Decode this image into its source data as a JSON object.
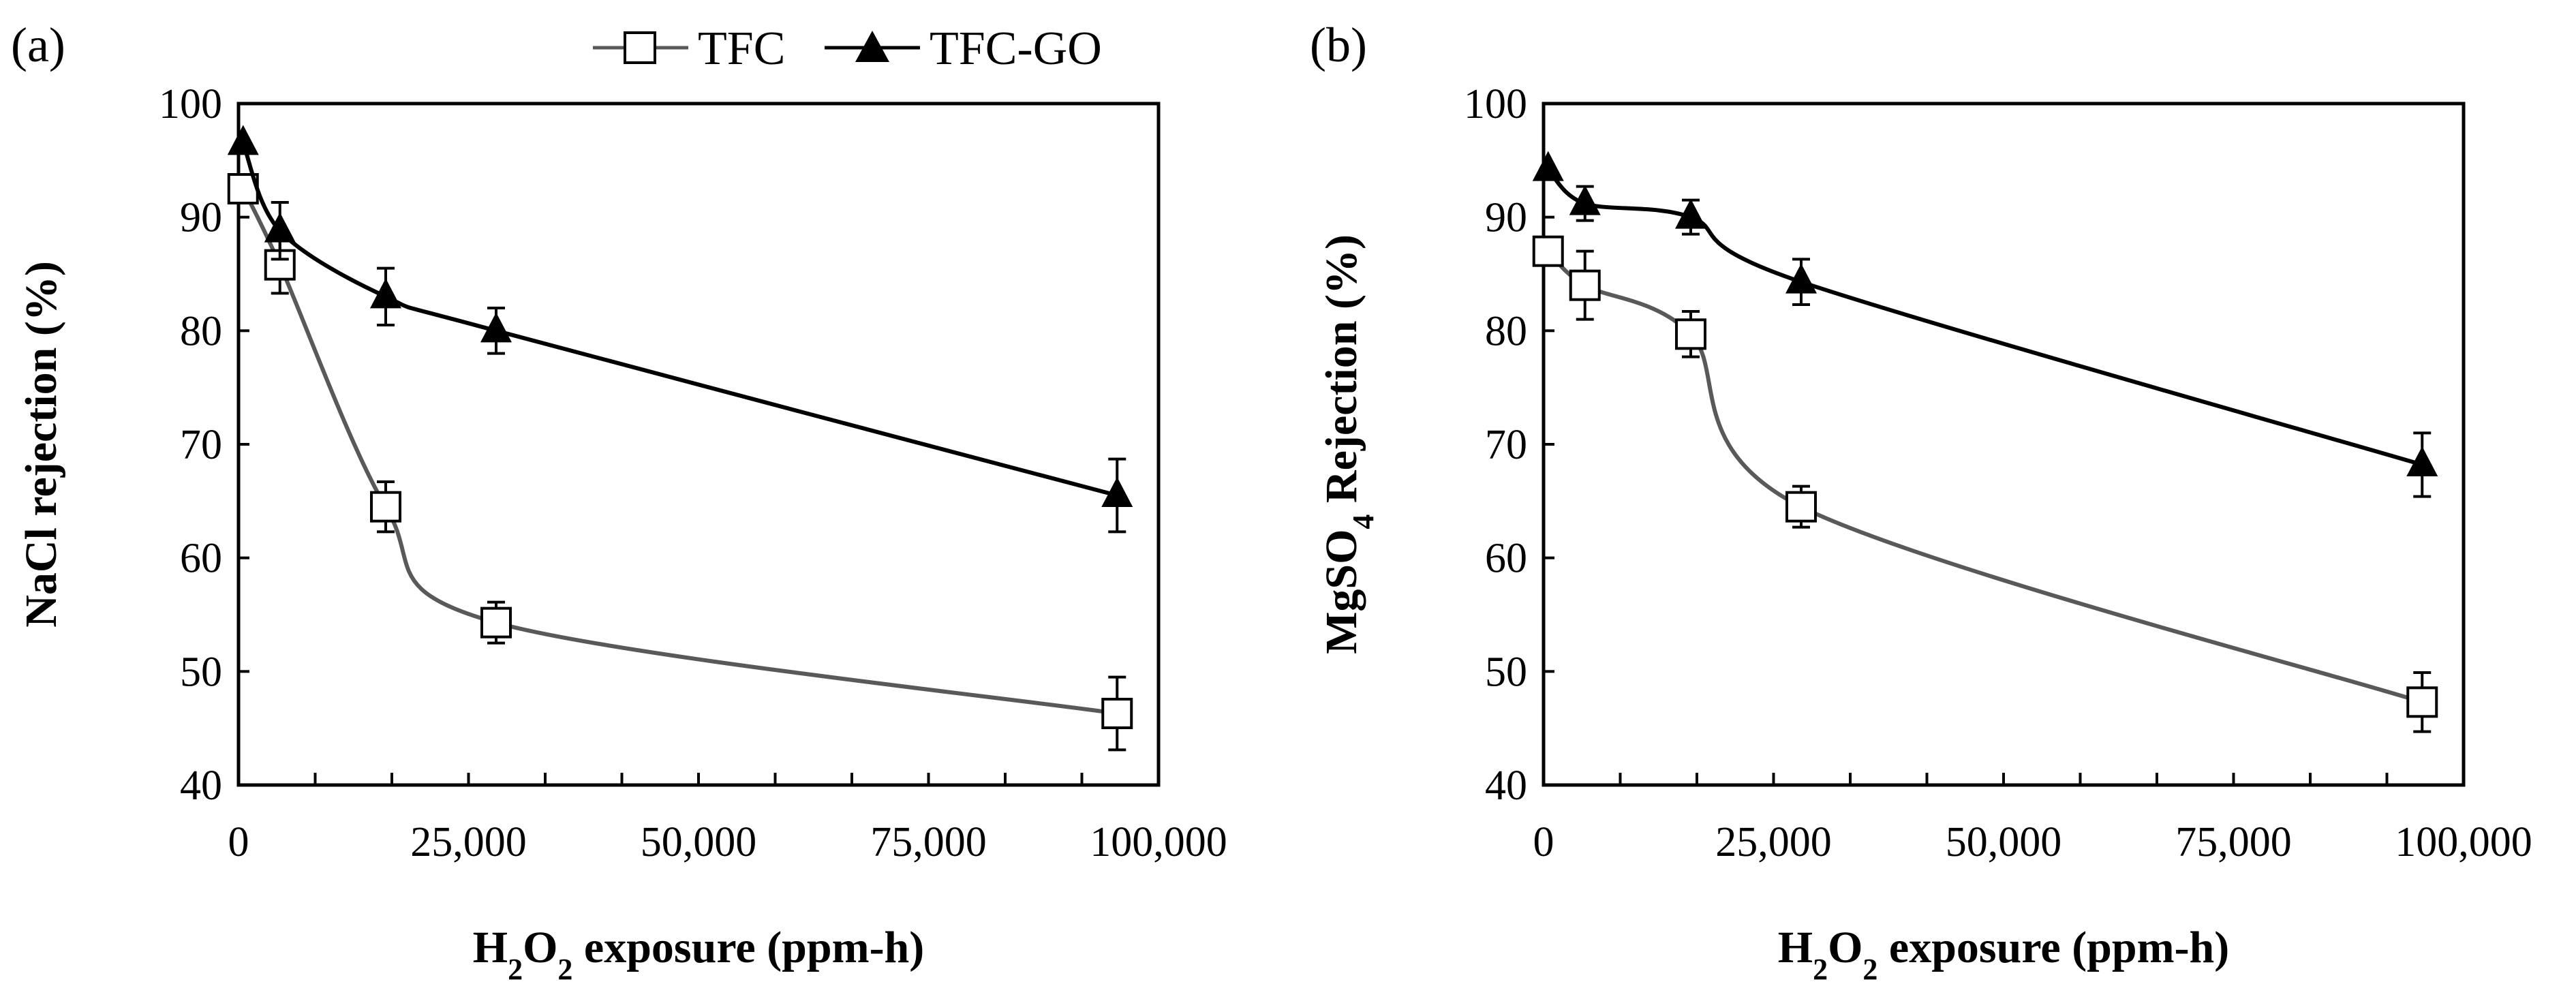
{
  "legend": {
    "tfc_label": "TFC",
    "tfcgo_label": "TFC-GO"
  },
  "colors": {
    "tfc_line": "#595959",
    "tfcgo_line": "#000000",
    "marker_fill_open": "#ffffff",
    "marker_fill_solid": "#000000"
  },
  "chart_data": [
    {
      "type": "line",
      "panel_label": "(a)",
      "title": "",
      "xlabel": {
        "pre": "H",
        "sub1": "2",
        "mid": "O",
        "sub2": "2",
        "post": " exposure (ppm-h)"
      },
      "ylabel": "NaCl rejection  (%)",
      "xlim": [
        0,
        100000
      ],
      "ylim": [
        40,
        100
      ],
      "x_tick_labels": [
        "0",
        "25,000",
        "50,000",
        "75,000",
        "100,000"
      ],
      "y_tick_labels": [
        "40",
        "50",
        "60",
        "70",
        "80",
        "90",
        "100"
      ],
      "series": [
        {
          "name": "TFC",
          "marker": "open-square",
          "x": [
            500,
            4500,
            16000,
            28000,
            95500
          ],
          "y": [
            92.5,
            85.8,
            64.5,
            54.3,
            46.3
          ],
          "err": [
            0,
            2.5,
            2.2,
            1.8,
            3.2
          ]
        },
        {
          "name": "TFC-GO",
          "marker": "filled-triangle",
          "x": [
            500,
            4500,
            16000,
            28000,
            95500
          ],
          "y": [
            96.5,
            88.8,
            83.0,
            80.0,
            65.5
          ],
          "err": [
            0,
            2.5,
            2.5,
            2.0,
            3.2
          ]
        }
      ]
    },
    {
      "type": "line",
      "panel_label": "(b)",
      "title": "",
      "xlabel": {
        "pre": "H",
        "sub1": "2",
        "mid": "O",
        "sub2": "2",
        "post": " exposure (ppm-h)"
      },
      "ylabel": {
        "pre": "MgSO",
        "sub": "4",
        "post": " Rejection  (%)"
      },
      "xlim": [
        0,
        100000
      ],
      "ylim": [
        40,
        100
      ],
      "x_tick_labels": [
        "0",
        "25,000",
        "50,000",
        "75,000",
        "100,000"
      ],
      "y_tick_labels": [
        "40",
        "50",
        "60",
        "70",
        "80",
        "90",
        "100"
      ],
      "series": [
        {
          "name": "TFC",
          "marker": "open-square",
          "x": [
            500,
            4500,
            16000,
            28000,
            95500
          ],
          "y": [
            87.0,
            84.0,
            79.7,
            64.5,
            47.3
          ],
          "err": [
            0,
            3.0,
            2.0,
            1.8,
            2.6
          ]
        },
        {
          "name": "TFC-GO",
          "marker": "filled-triangle",
          "x": [
            500,
            4500,
            16000,
            28000,
            95500
          ],
          "y": [
            94.2,
            91.2,
            90.0,
            84.3,
            68.2
          ],
          "err": [
            0,
            1.5,
            1.5,
            2.0,
            2.8
          ]
        }
      ]
    }
  ]
}
